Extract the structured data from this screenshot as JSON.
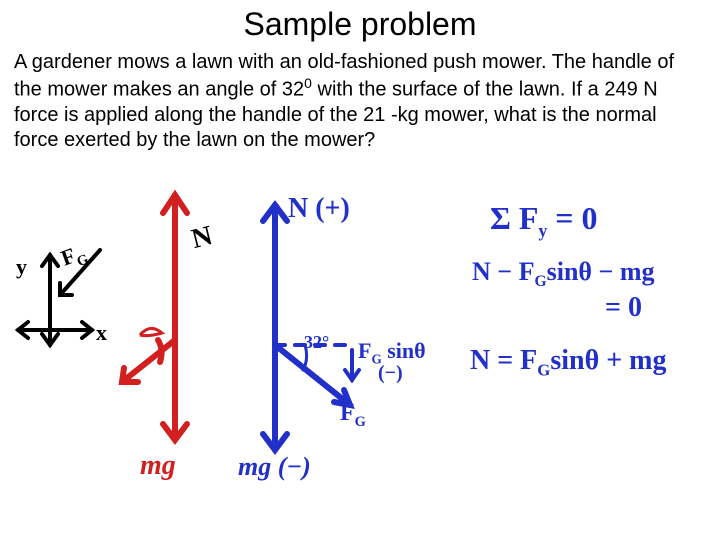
{
  "title": "Sample problem",
  "problem_html": "A gardener mows a lawn with an old-fashioned push mower. The handle of the mower makes an angle of 32<sup>0</sup> with the surface of the lawn. If a 249 N force is applied along the handle of the 21 -kg mower, what is the normal force exerted by the lawn on the mower?",
  "colors": {
    "black": "#000000",
    "red": "#d21f1f",
    "blue": "#2030c8"
  },
  "labels": {
    "y": "y",
    "x": "x",
    "FG_small": "F_G",
    "N": "N",
    "mg": "mg",
    "Nplus": "N (+)",
    "angle": "32°",
    "FGsin": "F_G sinθ",
    "minus": "(−)",
    "FG": "F_G",
    "mgminus": "mg (−)"
  },
  "eq": {
    "line1a": "Σ F",
    "line1y": "y",
    "line1b": " = 0",
    "line2": "N − F_G sinθ − mg",
    "line2r": "= 0",
    "line3": "N = F_G sinθ + mg"
  },
  "stroke_w": {
    "thin": 3,
    "mid": 4,
    "thick": 6
  },
  "fontsize": {
    "title": 32,
    "problem": 20,
    "hand_sm": 20,
    "hand_md": 26,
    "hand_lg": 30
  }
}
